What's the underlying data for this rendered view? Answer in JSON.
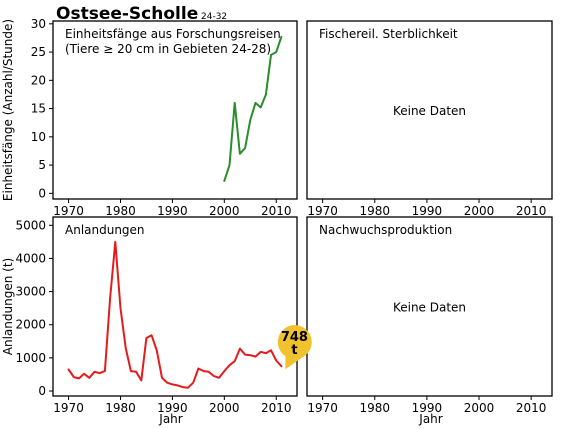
{
  "title": {
    "main": "Ostsee-Scholle",
    "sub": "24-32"
  },
  "colors": {
    "survey": "#2a8c2a",
    "landings": "#e51b1b",
    "badge": "#f2c12e",
    "frame": "#000000"
  },
  "no_data_label": "Keine Daten",
  "xlabel": "Jahr",
  "chart_data": [
    {
      "type": "line",
      "title": "Einheitsfänge aus Forschungsreisen",
      "subtitle": "(Tiere ≥ 20 cm in Gebieten 24-28)",
      "ylabel": "Einheitsfänge (Anzahl/Stunde)",
      "xlim": [
        1967,
        2014
      ],
      "ylim": [
        -1,
        30.5
      ],
      "xticks": [
        1970,
        1980,
        1990,
        2000,
        2010
      ],
      "yticks": [
        0,
        5,
        10,
        15,
        20,
        25,
        30
      ],
      "series": [
        {
          "color": "#2a8c2a",
          "x": [
            2000,
            2001,
            2002,
            2003,
            2004,
            2005,
            2006,
            2007,
            2008,
            2009,
            2010,
            2011
          ],
          "y": [
            2.2,
            5,
            16,
            7,
            8,
            13,
            16,
            15.2,
            17.5,
            24.5,
            25,
            27.7
          ]
        }
      ]
    },
    {
      "type": "line",
      "title": "Fischereil. Sterblichkeit",
      "no_data": true,
      "xlim": [
        1967,
        2014
      ],
      "xticks": [
        1970,
        1980,
        1990,
        2000,
        2010
      ]
    },
    {
      "type": "line",
      "title": "Anlandungen",
      "ylabel": "Anlandungen (t)",
      "xlabel": "Jahr",
      "xlim": [
        1967,
        2014
      ],
      "ylim": [
        -150,
        5250
      ],
      "xticks": [
        1970,
        1980,
        1990,
        2000,
        2010
      ],
      "yticks": [
        0,
        1000,
        2000,
        3000,
        4000,
        5000
      ],
      "annotation": {
        "value": "748",
        "unit": "t",
        "x": 2011,
        "y": 748
      },
      "series": [
        {
          "color": "#e51b1b",
          "x": [
            1970,
            1971,
            1972,
            1973,
            1974,
            1975,
            1976,
            1977,
            1978,
            1979,
            1980,
            1981,
            1982,
            1983,
            1984,
            1985,
            1986,
            1987,
            1988,
            1989,
            1990,
            1991,
            1992,
            1993,
            1994,
            1995,
            1996,
            1997,
            1998,
            1999,
            2000,
            2001,
            2002,
            2003,
            2004,
            2005,
            2006,
            2007,
            2008,
            2009,
            2010,
            2011
          ],
          "y": [
            650,
            420,
            380,
            520,
            400,
            580,
            540,
            600,
            2800,
            4500,
            2500,
            1300,
            600,
            580,
            320,
            1600,
            1680,
            1220,
            400,
            250,
            200,
            170,
            120,
            100,
            250,
            680,
            600,
            580,
            450,
            400,
            600,
            780,
            900,
            1280,
            1100,
            1080,
            1040,
            1180,
            1140,
            1230,
            920,
            748
          ]
        }
      ]
    },
    {
      "type": "line",
      "title": "Nachwuchsproduktion",
      "xlabel": "Jahr",
      "no_data": true,
      "xlim": [
        1967,
        2014
      ],
      "xticks": [
        1970,
        1980,
        1990,
        2000,
        2010
      ]
    }
  ]
}
